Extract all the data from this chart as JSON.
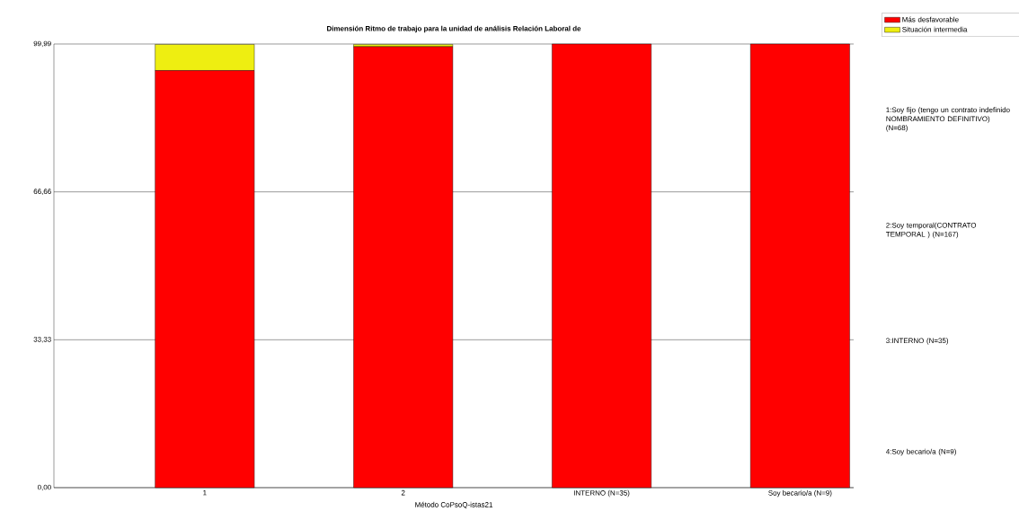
{
  "chart_data": {
    "type": "bar",
    "stacked": true,
    "title": "Dimensión Ritmo de trabajo para la unidad de análisis Relación Laboral de",
    "xlabel": "Método CoPsoQ-istas21",
    "categories": [
      "1",
      "2",
      "INTERNO (N=35)",
      "Soy becario/a (N=9)"
    ],
    "series": [
      {
        "name": "Más desfavorable",
        "color": "#ff0000",
        "values": [
          94,
          99.4,
          99.99,
          99.99
        ]
      },
      {
        "name": "Situación intermedia",
        "color": "#eeee11",
        "values": [
          5.9,
          0.5,
          0,
          0
        ]
      }
    ],
    "ylim": [
      0,
      99.99
    ],
    "yticks": [
      {
        "value": 0,
        "label": "0,00"
      },
      {
        "value": 33.33,
        "label": "33,33"
      },
      {
        "value": 66.66,
        "label": "66,66"
      },
      {
        "value": 99.99,
        "label": "99,99"
      }
    ],
    "grid": "y",
    "legend": "top right",
    "annotations": [
      "1:Soy fijo (tengo un contrato indefinido NOMBRAMIENTO DEFINITIVO) (N=68)",
      "2:Soy temporal(CONTRATO TEMPORAL ) (N=167)",
      "3:INTERNO (N=35)",
      "4:Soy becario/a (N=9)"
    ]
  }
}
